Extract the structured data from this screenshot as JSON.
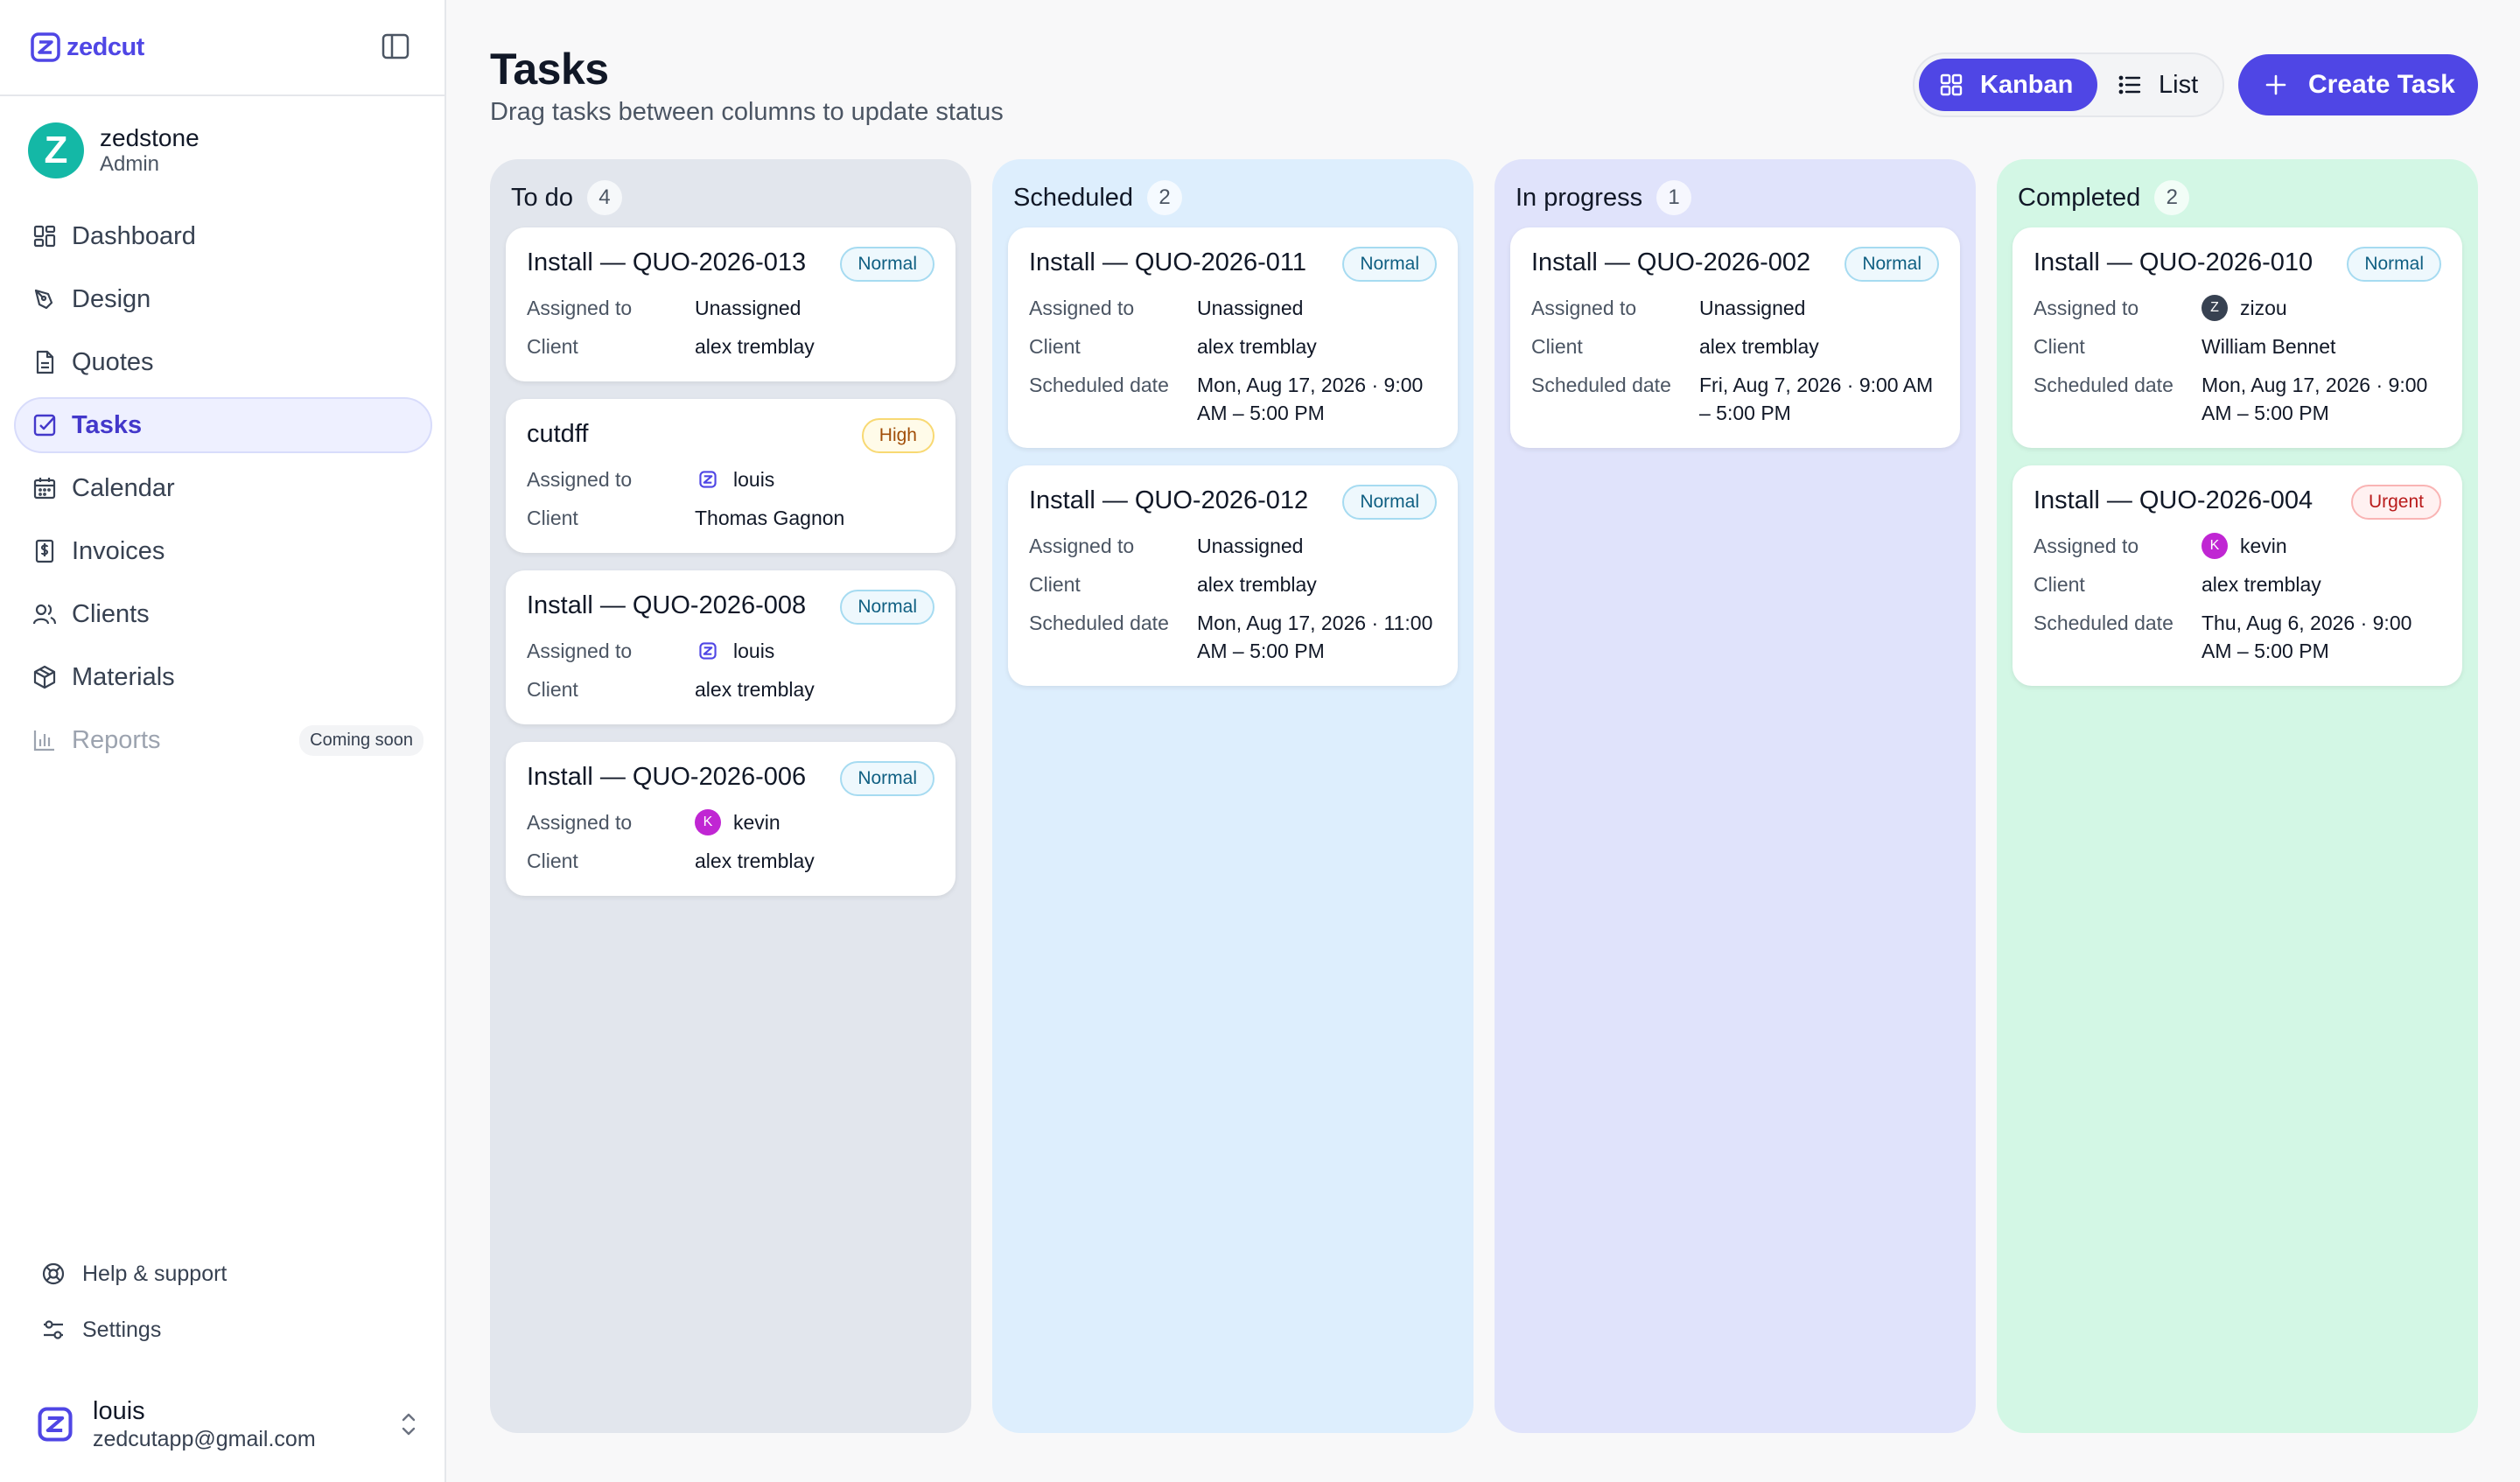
{
  "brand": {
    "name": "zedcut"
  },
  "workspace": {
    "avatar_letter": "Z",
    "name": "zedstone",
    "role": "Admin"
  },
  "nav": [
    {
      "id": "dashboard",
      "label": "Dashboard",
      "icon": "dashboard-icon"
    },
    {
      "id": "design",
      "label": "Design",
      "icon": "pen-tool-icon"
    },
    {
      "id": "quotes",
      "label": "Quotes",
      "icon": "document-icon"
    },
    {
      "id": "tasks",
      "label": "Tasks",
      "icon": "check-square-icon",
      "active": true
    },
    {
      "id": "calendar",
      "label": "Calendar",
      "icon": "calendar-icon"
    },
    {
      "id": "invoices",
      "label": "Invoices",
      "icon": "invoice-dollar-icon"
    },
    {
      "id": "clients",
      "label": "Clients",
      "icon": "users-icon"
    },
    {
      "id": "materials",
      "label": "Materials",
      "icon": "box-icon"
    },
    {
      "id": "reports",
      "label": "Reports",
      "icon": "bar-chart-icon",
      "disabled": true,
      "badge": "Coming soon"
    }
  ],
  "footer": {
    "help": "Help & support",
    "settings": "Settings"
  },
  "user": {
    "name": "louis",
    "email": "zedcutapp@gmail.com"
  },
  "header": {
    "title": "Tasks",
    "subtitle": "Drag tasks between columns to update status",
    "view_kanban": "Kanban",
    "view_list": "List",
    "create": "Create Task"
  },
  "labels": {
    "assigned": "Assigned to",
    "client": "Client",
    "scheduled": "Scheduled date"
  },
  "colors": {
    "accent": "#4f46e5",
    "todo": "#e2e6ed",
    "scheduled": "#ddeefd",
    "progress": "#e0e3fb",
    "completed": "#d3f7e5"
  },
  "columns": [
    {
      "title": "To do",
      "count": "4",
      "cards": [
        {
          "title": "Install — QUO-2026-013",
          "priority": "Normal",
          "assigned": "Unassigned",
          "client": "alex tremblay"
        },
        {
          "title": "cutdff",
          "priority": "High",
          "assigned": "louis",
          "avatar": "logo",
          "client": "Thomas Gagnon"
        },
        {
          "title": "Install — QUO-2026-008",
          "priority": "Normal",
          "assigned": "louis",
          "avatar": "logo",
          "client": "alex tremblay"
        },
        {
          "title": "Install — QUO-2026-006",
          "priority": "Normal",
          "assigned": "kevin",
          "avatar": "K",
          "client": "alex tremblay"
        }
      ]
    },
    {
      "title": "Scheduled",
      "count": "2",
      "cards": [
        {
          "title": "Install — QUO-2026-011",
          "priority": "Normal",
          "assigned": "Unassigned",
          "client": "alex tremblay",
          "scheduled": "Mon, Aug 17, 2026 · 9:00 AM – 5:00 PM"
        },
        {
          "title": "Install — QUO-2026-012",
          "priority": "Normal",
          "assigned": "Unassigned",
          "client": "alex tremblay",
          "scheduled": "Mon, Aug 17, 2026 · 11:00 AM – 5:00 PM"
        }
      ]
    },
    {
      "title": "In progress",
      "count": "1",
      "cards": [
        {
          "title": "Install — QUO-2026-002",
          "priority": "Normal",
          "assigned": "Unassigned",
          "client": "alex tremblay",
          "scheduled": "Fri, Aug 7, 2026 · 9:00 AM – 5:00 PM"
        }
      ]
    },
    {
      "title": "Completed",
      "count": "2",
      "cards": [
        {
          "title": "Install — QUO-2026-010",
          "priority": "Normal",
          "assigned": "zizou",
          "avatar": "Z",
          "client": "William Bennet",
          "scheduled": "Mon, Aug 17, 2026 · 9:00 AM – 5:00 PM"
        },
        {
          "title": "Install — QUO-2026-004",
          "priority": "Urgent",
          "assigned": "kevin",
          "avatar": "K",
          "client": "alex tremblay",
          "scheduled": "Thu, Aug 6, 2026 · 9:00 AM – 5:00 PM"
        }
      ]
    }
  ]
}
